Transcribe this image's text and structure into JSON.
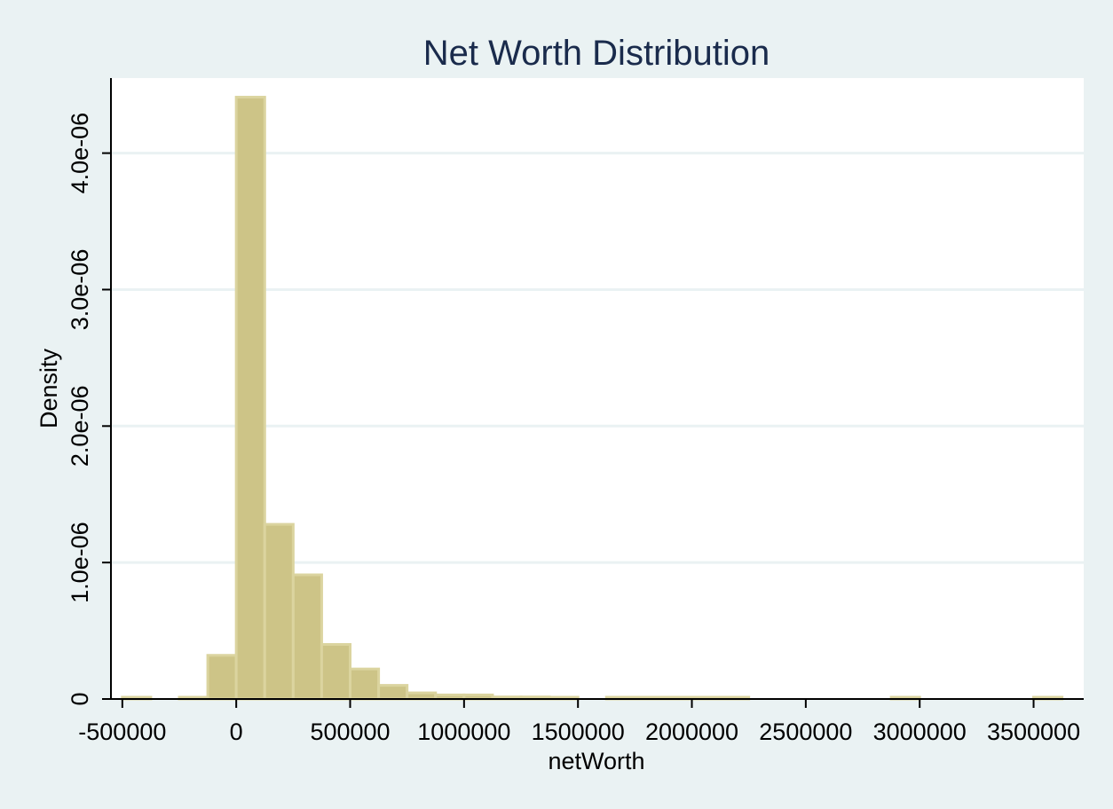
{
  "chart_data": {
    "type": "bar",
    "title": "Net Worth Distribution",
    "xlabel": "netWorth",
    "ylabel": "Density",
    "xlim": [
      -550000,
      3720000
    ],
    "ylim": [
      0,
      4.55e-06
    ],
    "x_ticks": [
      -500000,
      0,
      500000,
      1000000,
      1500000,
      2000000,
      2500000,
      3000000,
      3500000
    ],
    "x_tick_labels": [
      "-500000",
      "0",
      "500000",
      "1000000",
      "1500000",
      "2000000",
      "2500000",
      "3000000",
      "3500000"
    ],
    "y_ticks": [
      0,
      1e-06,
      2e-06,
      3e-06,
      4e-06
    ],
    "y_tick_labels": [
      "0",
      "1.0e-06",
      "2.0e-06",
      "3.0e-06",
      "4.0e-06"
    ],
    "grid": true,
    "bin_width": 125000,
    "bins": [
      {
        "x0": -500000,
        "x1": -375000,
        "value": 1e-08
      },
      {
        "x0": -250000,
        "x1": -125000,
        "value": 8e-09
      },
      {
        "x0": -125000,
        "x1": 0,
        "value": 3.2e-07
      },
      {
        "x0": 0,
        "x1": 125000,
        "value": 4.41e-06
      },
      {
        "x0": 125000,
        "x1": 250000,
        "value": 1.28e-06
      },
      {
        "x0": 250000,
        "x1": 375000,
        "value": 9.1e-07
      },
      {
        "x0": 375000,
        "x1": 500000,
        "value": 4e-07
      },
      {
        "x0": 500000,
        "x1": 625000,
        "value": 2.2e-07
      },
      {
        "x0": 625000,
        "x1": 750000,
        "value": 1e-07
      },
      {
        "x0": 750000,
        "x1": 875000,
        "value": 4.5e-08
      },
      {
        "x0": 875000,
        "x1": 1000000,
        "value": 3e-08
      },
      {
        "x0": 1000000,
        "x1": 1125000,
        "value": 3e-08
      },
      {
        "x0": 1125000,
        "x1": 1250000,
        "value": 1.5e-08
      },
      {
        "x0": 1250000,
        "x1": 1375000,
        "value": 1.5e-08
      },
      {
        "x0": 1375000,
        "x1": 1500000,
        "value": 8e-09
      },
      {
        "x0": 1625000,
        "x1": 1750000,
        "value": 8e-09
      },
      {
        "x0": 1750000,
        "x1": 1875000,
        "value": 8e-09
      },
      {
        "x0": 1875000,
        "x1": 2000000,
        "value": 8e-09
      },
      {
        "x0": 2000000,
        "x1": 2125000,
        "value": 8e-09
      },
      {
        "x0": 2125000,
        "x1": 2250000,
        "value": 8e-09
      },
      {
        "x0": 2875000,
        "x1": 3000000,
        "value": 8e-09
      },
      {
        "x0": 3500000,
        "x1": 3625000,
        "value": 1e-08
      }
    ]
  }
}
